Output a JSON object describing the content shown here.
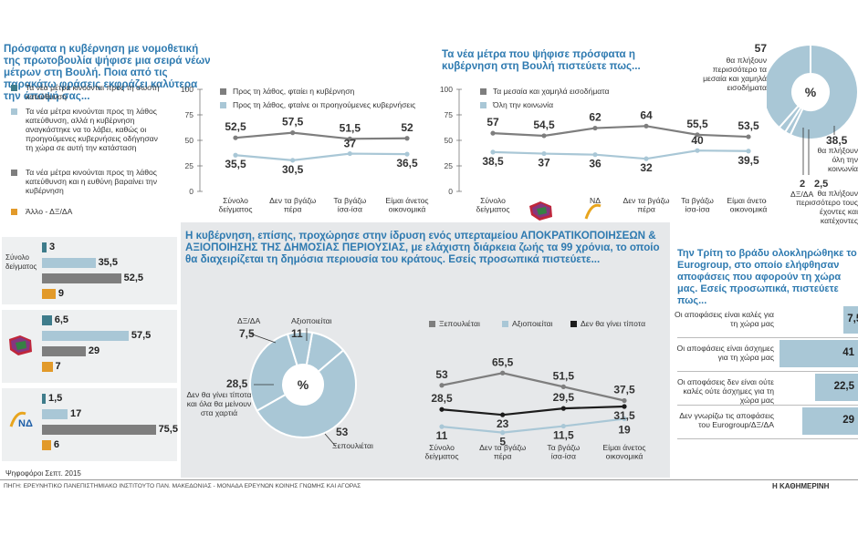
{
  "colors": {
    "teal": "#3e7c8b",
    "light_blue": "#a9c7d6",
    "gray": "#7e7e7e",
    "orange": "#e29a2a",
    "title_blue": "#2e7ab0",
    "black": "#1c1c1c",
    "panel": "#e6e8ea"
  },
  "left": {
    "question": "Πρόσφατα η κυβέρνηση με νομοθετική της πρωτοβουλία ψήφισε μια σειρά νέων μέτρων στη Βουλή. Ποια από τις παρακάτω φράσεις εκφράζει καλύτερα την άποψή σας...",
    "legend": [
      {
        "text": "Τα νέα μέτρα κινούνται προς τη σωστή κατεύθυνση",
        "color": "#3e7c8b"
      },
      {
        "text": "Τα νέα μέτρα κινούνται προς τη λάθος κατεύθυνση, αλλά η κυβέρνηση αναγκάστηκε να το λάβει, καθώς οι προηγούμενες κυβερνήσεις οδήγησαν τη χώρα σε αυτή την κατάσταση",
        "color": "#a9c7d6"
      },
      {
        "text": "Τα νέα μέτρα κινούνται προς τη λάθος κατεύθυνση και η ευθύνη βαραίνει την κυβέρνηση",
        "color": "#7e7e7e"
      },
      {
        "text": "Άλλο - ΔΞ/ΔΑ",
        "color": "#e29a2a"
      }
    ],
    "groups": [
      {
        "label": "Σύνολο δείγματος",
        "values": [
          3,
          35.5,
          52.5,
          9
        ],
        "labels": [
          "3",
          "35,5",
          "52,5",
          "9"
        ]
      },
      {
        "label": "",
        "values": [
          6.5,
          57.5,
          29,
          7
        ],
        "labels": [
          "6,5",
          "57,5",
          "29",
          "7"
        ]
      },
      {
        "label": "",
        "values": [
          1.5,
          17,
          75.5,
          6
        ],
        "labels": [
          "1,5",
          "17",
          "75,5",
          "6"
        ]
      }
    ],
    "party_nd": "ΝΔ",
    "footer": "Ψηφοφόροι Σεπτ. 2015"
  },
  "chart_data": [
    {
      "type": "line",
      "title": "",
      "ylim": [
        0,
        100
      ],
      "yticks": [
        "100",
        "75",
        "50",
        "25",
        "0"
      ],
      "categories": [
        "Σύνολο δείγματος",
        "Δεν τα βγάζω πέρα",
        "Τα βγάζω ίσα-ίσα",
        "Είμαι άνετος οικονομικά"
      ],
      "series": [
        {
          "name": "Προς τη λάθος, φταίει η κυβέρνηση",
          "values": [
            52.5,
            57.5,
            51.5,
            52
          ],
          "labels": [
            "52,5",
            "57,5",
            "51,5",
            "52"
          ],
          "color": "#7e7e7e"
        },
        {
          "name": "Προς τη λάθος, φταίνε οι προηγούμενες κυβερνήσεις",
          "values": [
            35.5,
            30.5,
            37,
            36.5
          ],
          "labels": [
            "35,5",
            "30,5",
            "37",
            "36,5"
          ],
          "color": "#a9c7d6"
        }
      ]
    },
    {
      "type": "line",
      "title": "Τα νέα μέτρα που ψήφισε πρόσφατα η κυβέρνηση στη Βουλή πιστεύετε πως...",
      "ylim": [
        0,
        100
      ],
      "yticks": [
        "100",
        "75",
        "50",
        "25",
        "0"
      ],
      "categories": [
        "Σύνολο δείγματος",
        "",
        "ΝΔ",
        "Δεν τα βγάζω πέρα",
        "Τα βγάζω ίσα-ίσα",
        "Είμαι άνετος οικονομικά"
      ],
      "series": [
        {
          "name": "Τα μεσαία και χαμηλά εισοδήματα",
          "values": [
            57,
            54.5,
            62,
            64,
            55.5,
            53.5
          ],
          "labels": [
            "57",
            "54,5",
            "62",
            "64",
            "55,5",
            "53,5"
          ],
          "color": "#7e7e7e"
        },
        {
          "name": "Όλη την κοινωνία",
          "values": [
            38.5,
            37,
            36,
            32,
            40,
            39.5
          ],
          "labels": [
            "38,5",
            "37",
            "36",
            "32",
            "40",
            "39,5"
          ],
          "color": "#a9c7d6"
        }
      ]
    },
    {
      "type": "pie",
      "title": "",
      "center_label": "%",
      "slices": [
        {
          "label": "θα πλήξουν περισσότερο τα μεσαία και χαμηλά εισοδήματα",
          "value": 57,
          "text": "57",
          "color": "#a9c7d6"
        },
        {
          "label": "θα πλήξουν όλη την κοινωνία",
          "value": 38.5,
          "text": "38,5",
          "color": "#a9c7d6"
        },
        {
          "label": "θα πλήξουν περισσότερο τους έχοντες και κατέχοντες",
          "value": 2.5,
          "text": "2,5",
          "color": "#a9c7d6"
        },
        {
          "label": "ΔΞ/ΔΑ",
          "value": 2,
          "text": "2",
          "color": "#a9c7d6"
        }
      ]
    },
    {
      "type": "pie",
      "title": "Η κυβέρνηση, επίσης, προχώρησε στην ίδρυση ενός υπερταμείου ΑΠΟΚΡΑΤΙΚΟΠΟΙΗΣΕΩΝ & ΑΞΙΟΠΟΙΗΣΗΣ ΤΗΣ ΔΗΜΟΣΙΑΣ ΠΕΡΙΟΥΣΙΑΣ, με ελάχιστη διάρκεια ζωής τα 99 χρόνια, το οποίο θα διαχειρίζεται τη δημόσια περιουσία του κράτους. Εσείς προσωπικά πιστεύετε...",
      "center_label": "%",
      "slices": [
        {
          "label": "Ξεπουλιέται",
          "value": 53,
          "text": "53",
          "color": "#a9c7d6"
        },
        {
          "label": "Δεν θα γίνει τίποτα και όλα θα μείνουν στα χαρτιά",
          "value": 28.5,
          "text": "28,5",
          "color": "#a9c7d6"
        },
        {
          "label": "ΔΞ/ΔΑ",
          "value": 7.5,
          "text": "7,5",
          "color": "#a9c7d6"
        },
        {
          "label": "Αξιοποιείται",
          "value": 11,
          "text": "11",
          "color": "#a9c7d6"
        }
      ]
    },
    {
      "type": "line",
      "title": "",
      "categories": [
        "Σύνολο δείγματος",
        "Δεν τα βγάζω πέρα",
        "Τα βγάζω ίσα-ίσα",
        "Είμαι άνετος οικονομικά"
      ],
      "series": [
        {
          "name": "Ξεπουλιέται",
          "values": [
            53,
            65.5,
            51.5,
            37.5
          ],
          "labels": [
            "53",
            "65,5",
            "51,5",
            "37,5"
          ],
          "color": "#7e7e7e"
        },
        {
          "name": "Αξιοποιείται",
          "values": [
            11,
            5,
            11.5,
            19
          ],
          "labels": [
            "11",
            "5",
            "11,5",
            "19"
          ],
          "color": "#a9c7d6"
        },
        {
          "name": "Δεν θα γίνει τίποτα",
          "values": [
            28.5,
            23,
            29.5,
            31.5
          ],
          "labels": [
            "28,5",
            "23",
            "29,5",
            "31,5"
          ],
          "color": "#1c1c1c"
        }
      ]
    },
    {
      "type": "bar",
      "title": "Την Τρίτη το βράδυ ολοκληρώθηκε το Eurogroup, στο οποίο ελήφθησαν αποφάσεις που αφορούν τη χώρα μας. Εσείς προσωπικά, πιστεύετε πως...",
      "categories": [
        "Οι αποφάσεις είναι καλές για τη χώρα μας",
        "Οι αποφάσεις είναι άσχημες για τη χώρα μας",
        "Οι αποφάσεις δεν είναι ούτε καλές ούτε άσχημες για τη χώρα μας",
        "Δεν γνωρίζω τις αποφάσεις του Eurogroup/ΔΞ/ΔΑ"
      ],
      "values": [
        7.5,
        41,
        22.5,
        29
      ],
      "labels": [
        "7,5",
        "41",
        "22,5",
        "29"
      ]
    }
  ],
  "footer": {
    "source": "ΠΗΓΗ: ΕΡΕΥΝΗΤΙΚΟ ΠΑΝΕΠΙΣΤΗΜΙΑΚΟ ΙΝΣΤΙΤΟΥΤΟ ΠΑΝ. ΜΑΚΕΔΟΝΙΑΣ - ΜΟΝΑΔΑ ΕΡΕΥΝΩΝ ΚΟΙΝΗΣ ΓΝΩΜΗΣ ΚΑΙ ΑΓΟΡΑΣ",
    "brand": "Η ΚΑΘΗΜΕΡΙΝΗ"
  }
}
